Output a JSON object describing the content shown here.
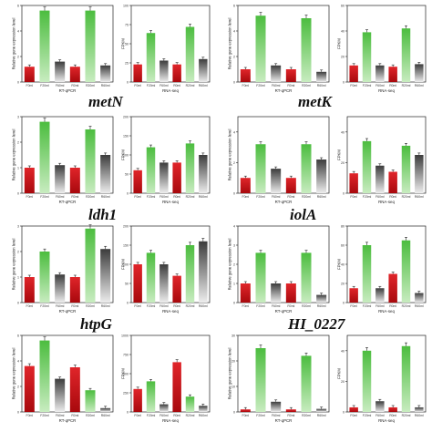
{
  "colors": {
    "red": "#d8161b",
    "green": "#3aa637",
    "gray": "#707070"
  },
  "genes": [
    {
      "name": "",
      "row": 0,
      "col": 0
    },
    {
      "name": "metN",
      "row": 1,
      "col": 0
    },
    {
      "name": "metK",
      "row": 1,
      "col": 1
    },
    {
      "name": "ldh1",
      "row": 2,
      "col": 0
    },
    {
      "name": "iolA",
      "row": 2,
      "col": 1
    },
    {
      "name": "htpG",
      "row": 3,
      "col": 0
    },
    {
      "name": "HI_0227",
      "row": 3,
      "col": 1
    }
  ],
  "chart_data": [
    {
      "type": "bar",
      "row": 0,
      "col": 0,
      "panel": "qpcr",
      "ylabel": "Relative gene expression level",
      "xlabel": "RT-qPCR",
      "categories": [
        "F0ml",
        "F20ml",
        "F60ml",
        "R0ml",
        "R20ml",
        "R60ml"
      ],
      "colors": [
        "red",
        "green",
        "gray",
        "red",
        "green",
        "gray"
      ],
      "ylim": [
        0,
        6
      ],
      "values": [
        1.2,
        5.6,
        1.6,
        1.2,
        5.6,
        1.3
      ]
    },
    {
      "type": "bar",
      "row": 0,
      "col": 0,
      "panel": "rnaseq",
      "ylabel": "FPKM",
      "xlabel": "RNA-seq",
      "categories": [
        "F0ml",
        "F20ml",
        "F60ml",
        "R0ml",
        "R20ml",
        "R60ml"
      ],
      "colors": [
        "red",
        "green",
        "gray",
        "red",
        "green",
        "gray"
      ],
      "ylim": [
        0,
        100
      ],
      "values": [
        23,
        64,
        28,
        23,
        72,
        30
      ]
    },
    {
      "type": "bar",
      "row": 0,
      "col": 1,
      "panel": "qpcr",
      "ylabel": "Relative gene expression level",
      "xlabel": "RT-qPCR",
      "categories": [
        "F0ml",
        "F20ml",
        "F60ml",
        "R0ml",
        "R20ml",
        "R60ml"
      ],
      "colors": [
        "red",
        "green",
        "gray",
        "red",
        "green",
        "gray"
      ],
      "ylim": [
        0,
        6
      ],
      "values": [
        1.0,
        5.2,
        1.3,
        1.0,
        5.0,
        0.8
      ]
    },
    {
      "type": "bar",
      "row": 0,
      "col": 1,
      "panel": "rnaseq",
      "ylabel": "FPKM",
      "xlabel": "RNA-seq",
      "categories": [
        "F0ml",
        "F20ml",
        "F60ml",
        "R0ml",
        "R20ml",
        "R60ml"
      ],
      "colors": [
        "red",
        "green",
        "gray",
        "red",
        "green",
        "gray"
      ],
      "ylim": [
        0,
        60
      ],
      "values": [
        13,
        39,
        13,
        12,
        42,
        14
      ]
    },
    {
      "type": "bar",
      "row": 1,
      "col": 0,
      "panel": "qpcr",
      "ylabel": "Relative gene expression level",
      "xlabel": "RT-qPCR",
      "categories": [
        "F0ml",
        "F20ml",
        "F60ml",
        "R0ml",
        "R20ml",
        "R60ml"
      ],
      "colors": [
        "red",
        "green",
        "gray",
        "red",
        "green",
        "gray"
      ],
      "ylim": [
        0,
        3
      ],
      "values": [
        1.0,
        2.8,
        1.1,
        1.0,
        2.5,
        1.5
      ]
    },
    {
      "type": "bar",
      "row": 1,
      "col": 0,
      "panel": "rnaseq",
      "ylabel": "FPKM",
      "xlabel": "RNA-seq",
      "categories": [
        "F0ml",
        "F20ml",
        "F60ml",
        "R0ml",
        "R20ml",
        "R60ml"
      ],
      "colors": [
        "red",
        "green",
        "gray",
        "red",
        "green",
        "gray"
      ],
      "ylim": [
        0,
        200
      ],
      "values": [
        60,
        120,
        80,
        80,
        130,
        100
      ]
    },
    {
      "type": "bar",
      "row": 1,
      "col": 1,
      "panel": "qpcr",
      "ylabel": "Relative gene expression level",
      "xlabel": "RT-qPCR",
      "categories": [
        "F0ml",
        "F20ml",
        "F60ml",
        "R0ml",
        "R20ml",
        "R60ml"
      ],
      "colors": [
        "red",
        "green",
        "gray",
        "red",
        "green",
        "gray"
      ],
      "ylim": [
        0,
        5
      ],
      "values": [
        1.0,
        3.2,
        1.6,
        1.0,
        3.2,
        2.2
      ]
    },
    {
      "type": "bar",
      "row": 1,
      "col": 1,
      "panel": "rnaseq",
      "ylabel": "FPKM",
      "xlabel": "RNA-seq",
      "categories": [
        "F0ml",
        "F20ml",
        "F60ml",
        "R0ml",
        "R20ml",
        "R60ml"
      ],
      "colors": [
        "red",
        "green",
        "gray",
        "red",
        "green",
        "gray"
      ],
      "ylim": [
        0,
        50
      ],
      "values": [
        13,
        34,
        18,
        14,
        31,
        25
      ]
    },
    {
      "type": "bar",
      "row": 2,
      "col": 0,
      "panel": "qpcr",
      "ylabel": "Relative gene expression level",
      "xlabel": "RT-qPCR",
      "categories": [
        "F0ml",
        "F20ml",
        "F60ml",
        "R0ml",
        "R20ml",
        "R60ml"
      ],
      "colors": [
        "red",
        "green",
        "gray",
        "red",
        "green",
        "gray"
      ],
      "ylim": [
        0,
        3
      ],
      "values": [
        1.0,
        2.0,
        1.1,
        1.0,
        2.9,
        2.1
      ]
    },
    {
      "type": "bar",
      "row": 2,
      "col": 0,
      "panel": "rnaseq",
      "ylabel": "FPKM",
      "xlabel": "RNA-seq",
      "categories": [
        "F0ml",
        "F20ml",
        "F60ml",
        "R0ml",
        "R20ml",
        "R60ml"
      ],
      "colors": [
        "red",
        "green",
        "gray",
        "red",
        "green",
        "gray"
      ],
      "ylim": [
        0,
        200
      ],
      "values": [
        100,
        130,
        100,
        70,
        150,
        160
      ]
    },
    {
      "type": "bar",
      "row": 2,
      "col": 1,
      "panel": "qpcr",
      "ylabel": "Relative gene expression level",
      "xlabel": "RT-qPCR",
      "categories": [
        "F0ml",
        "F20ml",
        "F60ml",
        "R0ml",
        "R20ml",
        "R60ml"
      ],
      "colors": [
        "red",
        "green",
        "gray",
        "red",
        "green",
        "gray"
      ],
      "ylim": [
        0,
        4
      ],
      "values": [
        1.0,
        2.6,
        1.0,
        1.0,
        2.6,
        0.4
      ]
    },
    {
      "type": "bar",
      "row": 2,
      "col": 1,
      "panel": "rnaseq",
      "ylabel": "FPKM",
      "xlabel": "RNA-seq",
      "categories": [
        "F0ml",
        "F20ml",
        "F60ml",
        "R0ml",
        "R20ml",
        "R60ml"
      ],
      "colors": [
        "red",
        "green",
        "gray",
        "red",
        "green",
        "gray"
      ],
      "ylim": [
        0,
        80
      ],
      "values": [
        15,
        60,
        15,
        30,
        65,
        10
      ]
    },
    {
      "type": "bar",
      "row": 3,
      "col": 0,
      "panel": "qpcr",
      "ylabel": "Relative gene expression level",
      "xlabel": "RT-qPCR",
      "categories": [
        "F0ml",
        "F20ml",
        "F60ml",
        "R0ml",
        "R20ml",
        "R60ml"
      ],
      "colors": [
        "red",
        "green",
        "gray",
        "red",
        "green",
        "gray"
      ],
      "ylim": [
        0,
        6
      ],
      "values": [
        3.6,
        5.6,
        2.6,
        3.5,
        1.7,
        0.3
      ]
    },
    {
      "type": "bar",
      "row": 3,
      "col": 0,
      "panel": "rnaseq",
      "ylabel": "FPKM",
      "xlabel": "RNA-seq",
      "categories": [
        "F0ml",
        "F20ml",
        "F60ml",
        "R0ml",
        "R20ml",
        "R60ml"
      ],
      "colors": [
        "red",
        "green",
        "gray",
        "red",
        "green",
        "gray"
      ],
      "ylim": [
        0,
        1000
      ],
      "values": [
        300,
        400,
        100,
        650,
        200,
        80
      ]
    },
    {
      "type": "bar",
      "row": 3,
      "col": 1,
      "panel": "qpcr",
      "ylabel": "Relative gene expression level",
      "xlabel": "RT-qPCR",
      "categories": [
        "F0ml",
        "F20ml",
        "F60ml",
        "R0ml",
        "R20ml",
        "R60ml"
      ],
      "colors": [
        "red",
        "green",
        "gray",
        "red",
        "green",
        "gray"
      ],
      "ylim": [
        0,
        30
      ],
      "values": [
        1.0,
        25,
        4,
        1.0,
        22,
        1.2
      ]
    },
    {
      "type": "bar",
      "row": 3,
      "col": 1,
      "panel": "rnaseq",
      "ylabel": "FPKM",
      "xlabel": "RNA-seq",
      "categories": [
        "F0ml",
        "F20ml",
        "F60ml",
        "R0ml",
        "R20ml",
        "R60ml"
      ],
      "colors": [
        "red",
        "green",
        "gray",
        "red",
        "green",
        "gray"
      ],
      "ylim": [
        0,
        50
      ],
      "values": [
        3,
        40,
        7,
        3,
        43,
        3
      ]
    }
  ]
}
